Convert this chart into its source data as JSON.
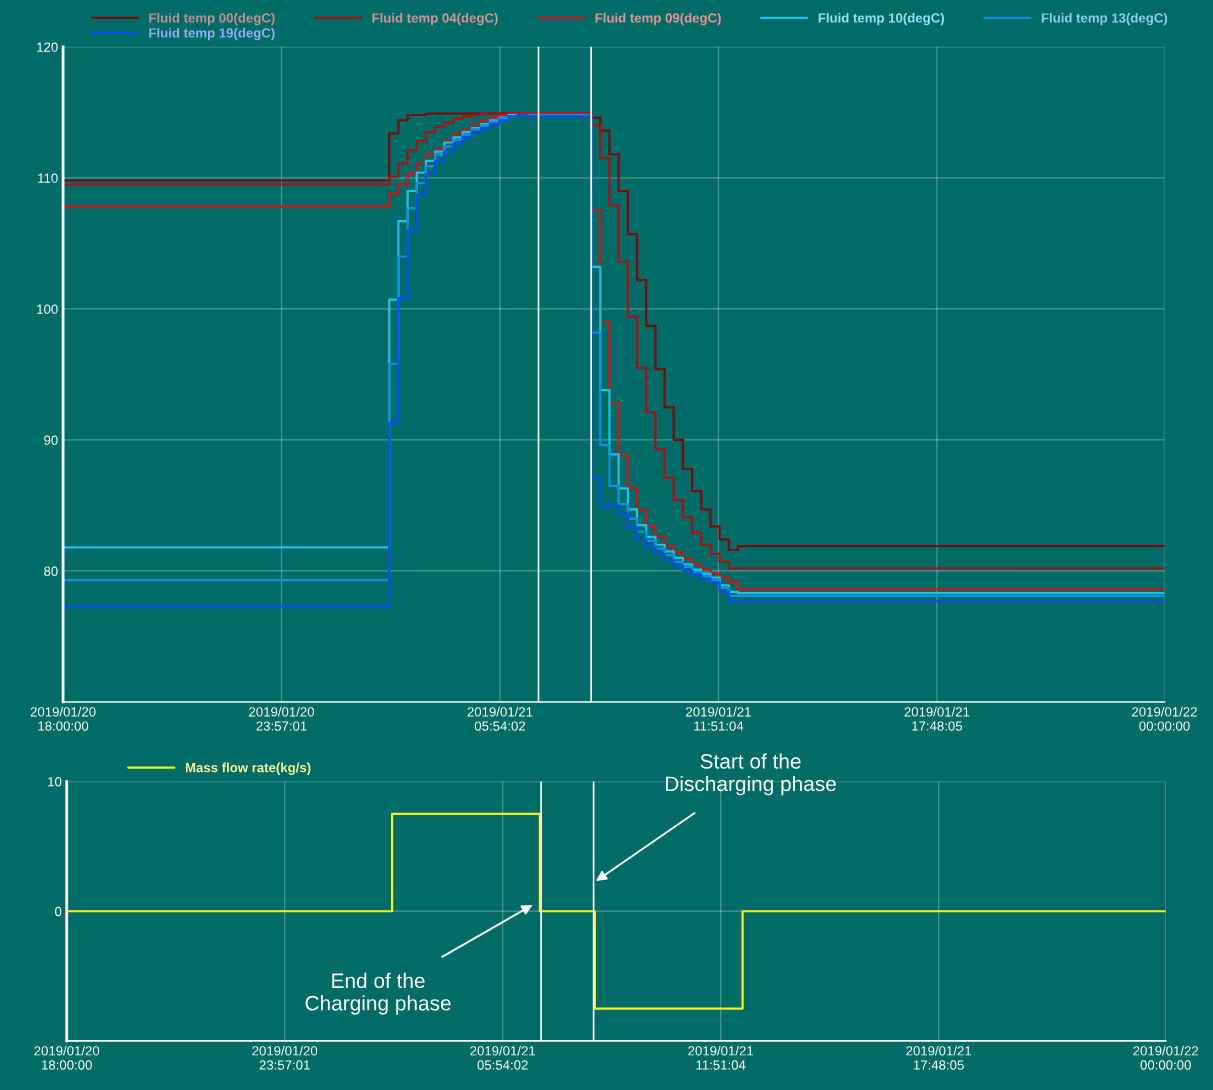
{
  "chart_data": [
    {
      "type": "step",
      "x": [
        "2019-01-20T18:00",
        "2019-01-21T02:53",
        "2019-01-21T03:08",
        "2019-01-21T03:23",
        "2019-01-21T03:38",
        "2019-01-21T03:53",
        "2019-01-21T04:08",
        "2019-01-21T04:23",
        "2019-01-21T04:38",
        "2019-01-21T04:53",
        "2019-01-21T05:08",
        "2019-01-21T05:23",
        "2019-01-21T05:38",
        "2019-01-21T05:53",
        "2019-01-21T06:08",
        "2019-01-21T06:23",
        "2019-01-21T06:38",
        "2019-01-21T06:53",
        "2019-01-21T07:08",
        "2019-01-21T07:23",
        "2019-01-21T07:38",
        "2019-01-21T07:53",
        "2019-01-21T08:08",
        "2019-01-21T08:23",
        "2019-01-21T08:38",
        "2019-01-21T08:53",
        "2019-01-21T09:08",
        "2019-01-21T09:23",
        "2019-01-21T09:38",
        "2019-01-21T09:53",
        "2019-01-21T10:08",
        "2019-01-21T10:23",
        "2019-01-21T10:38",
        "2019-01-21T10:53",
        "2019-01-21T11:08",
        "2019-01-21T11:23",
        "2019-01-21T11:38",
        "2019-01-21T11:53",
        "2019-01-21T12:08",
        "2019-01-21T12:23",
        "2019-01-22T00:00"
      ],
      "series": [
        {
          "name": "Fluid temp 00(degC)",
          "color": "#7a0c0c",
          "values": [
            109.8,
            113.4,
            114.4,
            114.8,
            114.8,
            114.9,
            114.9,
            114.9,
            114.9,
            114.9,
            114.9,
            114.9,
            114.9,
            114.9,
            114.9,
            114.9,
            114.9,
            114.9,
            114.9,
            114.9,
            114.9,
            114.9,
            114.9,
            114.6,
            113.6,
            111.8,
            109.0,
            105.7,
            102.2,
            98.7,
            95.4,
            92.5,
            90.0,
            87.8,
            86.1,
            84.7,
            83.4,
            82.4,
            81.6,
            81.9,
            81.9
          ]
        },
        {
          "name": "Fluid temp 04(degC)",
          "color": "#a51212",
          "values": [
            109.5,
            110.1,
            111.1,
            112.1,
            112.8,
            113.5,
            113.9,
            114.2,
            114.5,
            114.7,
            114.8,
            114.9,
            114.9,
            114.9,
            114.9,
            114.9,
            114.9,
            114.9,
            114.9,
            114.9,
            114.9,
            114.9,
            114.9,
            114.0,
            111.5,
            107.9,
            103.6,
            99.4,
            95.5,
            92.1,
            89.3,
            87.1,
            85.4,
            84.1,
            82.9,
            82.0,
            81.3,
            80.7,
            80.2,
            80.2,
            80.2
          ]
        },
        {
          "name": "Fluid temp 09(degC)",
          "color": "#d01414",
          "values": [
            107.8,
            108.8,
            109.5,
            110.3,
            111.1,
            111.8,
            112.2,
            112.8,
            113.4,
            113.7,
            114.1,
            114.4,
            114.6,
            114.8,
            114.9,
            114.9,
            114.9,
            114.9,
            114.9,
            114.9,
            114.9,
            114.9,
            114.9,
            107.5,
            99.0,
            92.8,
            88.8,
            86.3,
            84.6,
            83.4,
            82.6,
            81.9,
            81.4,
            80.9,
            80.5,
            80.1,
            79.8,
            79.5,
            79.1,
            78.6,
            78.6
          ]
        },
        {
          "name": "Fluid temp 10(degC)",
          "color": "#1cc4ec",
          "values": [
            81.8,
            100.7,
            106.7,
            109.0,
            110.4,
            111.3,
            112.0,
            112.7,
            113.1,
            113.5,
            113.8,
            114.1,
            114.4,
            114.6,
            114.8,
            114.8,
            114.8,
            114.8,
            114.8,
            114.8,
            114.8,
            114.8,
            114.8,
            103.2,
            93.8,
            88.9,
            86.3,
            84.7,
            83.5,
            82.6,
            82.0,
            81.5,
            81.0,
            80.5,
            80.1,
            79.8,
            79.5,
            78.9,
            78.4,
            78.3,
            78.3
          ]
        },
        {
          "name": "Fluid temp 13(degC)",
          "color": "#0c90e6",
          "values": [
            79.3,
            95.8,
            104.0,
            107.7,
            109.6,
            110.9,
            111.8,
            112.4,
            112.9,
            113.3,
            113.7,
            114.0,
            114.3,
            114.6,
            114.7,
            114.8,
            114.8,
            114.8,
            114.8,
            114.8,
            114.8,
            114.8,
            114.8,
            98.2,
            89.6,
            86.5,
            85.1,
            84.0,
            83.0,
            82.3,
            81.7,
            81.2,
            80.7,
            80.3,
            79.9,
            79.6,
            79.3,
            78.7,
            78.1,
            78.1,
            78.1
          ]
        },
        {
          "name": "Fluid temp 19(degC)",
          "color": "#0c4cec",
          "values": [
            77.3,
            91.3,
            100.8,
            106.0,
            108.7,
            110.3,
            111.3,
            112.0,
            112.6,
            113.1,
            113.5,
            113.8,
            114.1,
            114.4,
            114.7,
            114.8,
            114.7,
            114.7,
            114.7,
            114.7,
            114.7,
            114.7,
            114.7,
            87.1,
            84.9,
            85.0,
            84.4,
            83.3,
            82.4,
            81.8,
            81.3,
            80.8,
            80.4,
            80.0,
            79.7,
            79.4,
            79.1,
            78.4,
            77.7,
            77.7,
            77.7
          ]
        }
      ],
      "xlim": [
        "2019-01-20T18:00",
        "2019-01-22T00:00"
      ],
      "xticks": [
        {
          "value": "2019-01-20T18:00:00",
          "label": "2019/01/20\n18:00:00"
        },
        {
          "value": "2019-01-20T23:57:01",
          "label": "2019/01/20\n23:57:01"
        },
        {
          "value": "2019-01-21T05:54:02",
          "label": "2019/01/21\n05:54:02"
        },
        {
          "value": "2019-01-21T11:51:04",
          "label": "2019/01/21\n11:51:04"
        },
        {
          "value": "2019-01-21T17:48:05",
          "label": "2019/01/21\n17:48:05"
        },
        {
          "value": "2019-01-22T00:00:00",
          "label": "2019/01/22\n00:00:00"
        }
      ],
      "ylim": [
        70,
        120
      ],
      "yticks": [
        80,
        90,
        100,
        110,
        120
      ],
      "grid": true,
      "legend": "top",
      "ref_lines": [
        {
          "axis": "x",
          "value": "2019-01-21T06:57",
          "label": null,
          "color": "#ffffff"
        },
        {
          "axis": "x",
          "value": "2019-01-21T08:23",
          "label": null,
          "color": "#ffffff"
        }
      ]
    },
    {
      "type": "step",
      "x": [
        "2019-01-20T18:00",
        "2019-01-21T02:53",
        "2019-01-21T06:55",
        "2019-01-21T08:25",
        "2019-01-21T12:27",
        "2019-01-22T00:00"
      ],
      "series": [
        {
          "name": "Mass flow rate(kg/s)",
          "color": "#f2f21e",
          "values": [
            0,
            7.5,
            0,
            -7.5,
            0,
            0
          ]
        }
      ],
      "xlim": [
        "2019-01-20T18:00",
        "2019-01-22T00:00"
      ],
      "xticks": [
        {
          "value": "2019-01-20T18:00:00",
          "label": "2019/01/20\n18:00:00"
        },
        {
          "value": "2019-01-20T23:57:01",
          "label": "2019/01/20\n23:57:01"
        },
        {
          "value": "2019-01-21T05:54:02",
          "label": "2019/01/21\n05:54:02"
        },
        {
          "value": "2019-01-21T11:51:04",
          "label": "2019/01/21\n11:51:04"
        },
        {
          "value": "2019-01-21T17:48:05",
          "label": "2019/01/21\n17:48:05"
        },
        {
          "value": "2019-01-22T00:00:00",
          "label": "2019/01/22\n00:00:00"
        }
      ],
      "ylim": [
        -10,
        10
      ],
      "yticks": [
        0,
        10
      ],
      "grid": true,
      "legend": "top left",
      "ref_lines": [
        {
          "axis": "x",
          "value": "2019-01-21T06:57",
          "label": null,
          "color": "#ffffff"
        },
        {
          "axis": "x",
          "value": "2019-01-21T08:23",
          "label": null,
          "color": "#ffffff"
        }
      ],
      "annotations": [
        {
          "text": "End of the\nCharging phase",
          "x": "2019-01-21T06:47",
          "y": 0.6
        },
        {
          "text": "Start of the\nDischarging phase",
          "x": "2019-01-21T08:23",
          "y": 2.2
        }
      ]
    }
  ]
}
